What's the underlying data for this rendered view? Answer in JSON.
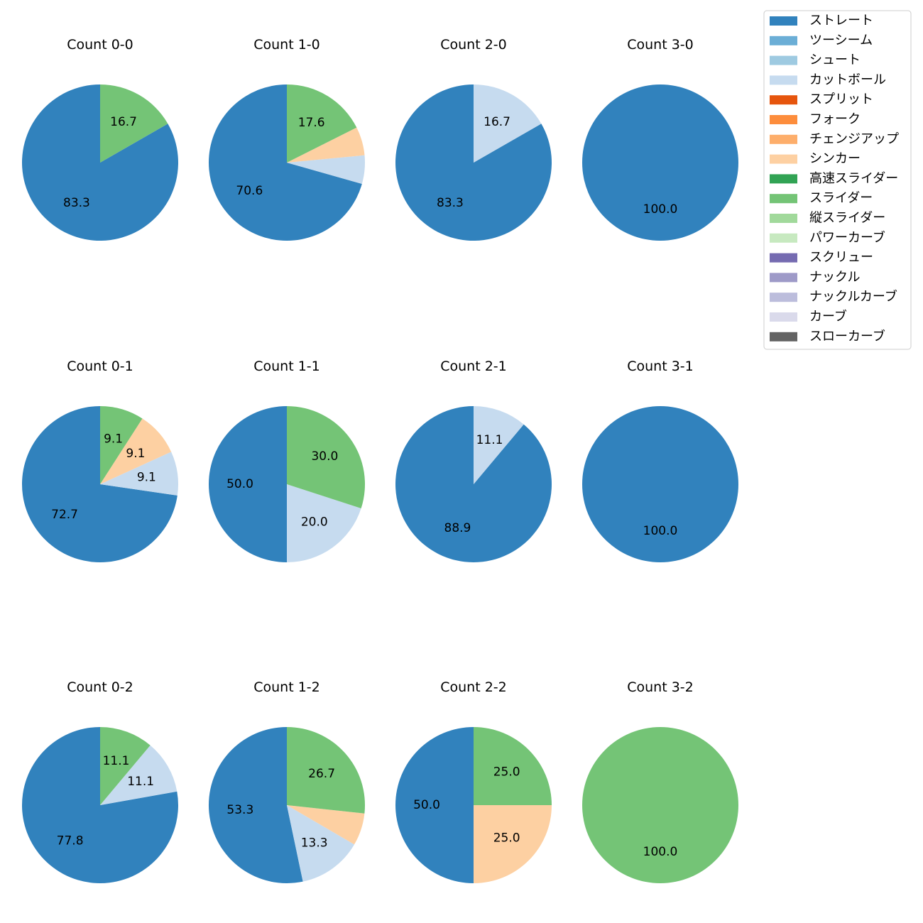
{
  "chart_data": {
    "type": "pie",
    "legend": {
      "position": "top-right",
      "entries": [
        {
          "label": "ストレート",
          "color": "#3182bd"
        },
        {
          "label": "ツーシーム",
          "color": "#6baed6"
        },
        {
          "label": "シュート",
          "color": "#9ecae1"
        },
        {
          "label": "カットボール",
          "color": "#c6dbef"
        },
        {
          "label": "スプリット",
          "color": "#e6550d"
        },
        {
          "label": "フォーク",
          "color": "#fd8d3c"
        },
        {
          "label": "チェンジアップ",
          "color": "#fdae6b"
        },
        {
          "label": "シンカー",
          "color": "#fdd0a2"
        },
        {
          "label": "高速スライダー",
          "color": "#31a354"
        },
        {
          "label": "スライダー",
          "color": "#74c476"
        },
        {
          "label": "縦スライダー",
          "color": "#a1d99b"
        },
        {
          "label": "パワーカーブ",
          "color": "#c7e9c0"
        },
        {
          "label": "スクリュー",
          "color": "#756bb1"
        },
        {
          "label": "ナックル",
          "color": "#9e9ac8"
        },
        {
          "label": "ナックルカーブ",
          "color": "#bcbddc"
        },
        {
          "label": "カーブ",
          "color": "#dadaeb"
        },
        {
          "label": "スローカーブ",
          "color": "#636363"
        }
      ]
    },
    "charts": [
      {
        "title": "Count 0-0",
        "slices": [
          {
            "pitch": "ストレート",
            "value": 83.3,
            "label": "83.3"
          },
          {
            "pitch": "スライダー",
            "value": 16.7,
            "label": "16.7"
          }
        ]
      },
      {
        "title": "Count 1-0",
        "slices": [
          {
            "pitch": "ストレート",
            "value": 70.6,
            "label": "70.6"
          },
          {
            "pitch": "カットボール",
            "value": 5.9,
            "label": ""
          },
          {
            "pitch": "シンカー",
            "value": 5.9,
            "label": ""
          },
          {
            "pitch": "スライダー",
            "value": 17.6,
            "label": "17.6"
          }
        ]
      },
      {
        "title": "Count 2-0",
        "slices": [
          {
            "pitch": "ストレート",
            "value": 83.3,
            "label": "83.3"
          },
          {
            "pitch": "カットボール",
            "value": 16.7,
            "label": "16.7"
          }
        ]
      },
      {
        "title": "Count 3-0",
        "slices": [
          {
            "pitch": "ストレート",
            "value": 100.0,
            "label": "100.0"
          }
        ]
      },
      {
        "title": "Count 0-1",
        "slices": [
          {
            "pitch": "ストレート",
            "value": 72.7,
            "label": "72.7"
          },
          {
            "pitch": "カットボール",
            "value": 9.1,
            "label": "9.1"
          },
          {
            "pitch": "シンカー",
            "value": 9.1,
            "label": "9.1"
          },
          {
            "pitch": "スライダー",
            "value": 9.1,
            "label": "9.1"
          }
        ]
      },
      {
        "title": "Count 1-1",
        "slices": [
          {
            "pitch": "ストレート",
            "value": 50.0,
            "label": "50.0"
          },
          {
            "pitch": "カットボール",
            "value": 20.0,
            "label": "20.0"
          },
          {
            "pitch": "スライダー",
            "value": 30.0,
            "label": "30.0"
          }
        ]
      },
      {
        "title": "Count 2-1",
        "slices": [
          {
            "pitch": "ストレート",
            "value": 88.9,
            "label": "88.9"
          },
          {
            "pitch": "カットボール",
            "value": 11.1,
            "label": "11.1"
          }
        ]
      },
      {
        "title": "Count 3-1",
        "slices": [
          {
            "pitch": "ストレート",
            "value": 100.0,
            "label": "100.0"
          }
        ]
      },
      {
        "title": "Count 0-2",
        "slices": [
          {
            "pitch": "ストレート",
            "value": 77.8,
            "label": "77.8"
          },
          {
            "pitch": "カットボール",
            "value": 11.1,
            "label": "11.1"
          },
          {
            "pitch": "スライダー",
            "value": 11.1,
            "label": "11.1"
          }
        ]
      },
      {
        "title": "Count 1-2",
        "slices": [
          {
            "pitch": "ストレート",
            "value": 53.3,
            "label": "53.3"
          },
          {
            "pitch": "カットボール",
            "value": 13.3,
            "label": "13.3"
          },
          {
            "pitch": "シンカー",
            "value": 6.7,
            "label": ""
          },
          {
            "pitch": "スライダー",
            "value": 26.7,
            "label": "26.7"
          }
        ]
      },
      {
        "title": "Count 2-2",
        "slices": [
          {
            "pitch": "ストレート",
            "value": 50.0,
            "label": "50.0"
          },
          {
            "pitch": "シンカー",
            "value": 25.0,
            "label": "25.0"
          },
          {
            "pitch": "スライダー",
            "value": 25.0,
            "label": "25.0"
          }
        ]
      },
      {
        "title": "Count 3-2",
        "slices": [
          {
            "pitch": "スライダー",
            "value": 100.0,
            "label": "100.0"
          }
        ]
      }
    ]
  }
}
